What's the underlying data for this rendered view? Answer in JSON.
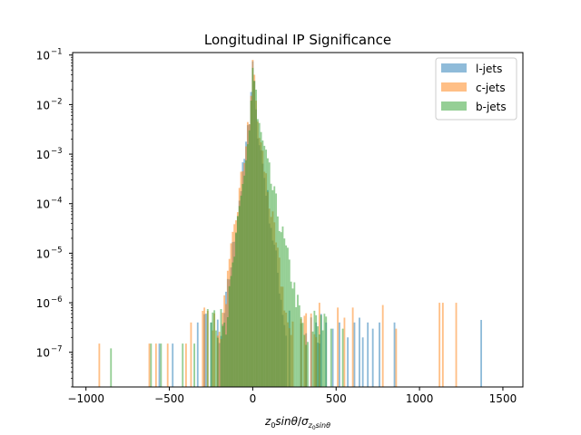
{
  "chart_data": {
    "type": "histogram",
    "title": "Longitudinal IP Significance",
    "xlabel_parts": {
      "base": "z",
      "sub0": "0",
      "mid": "sin",
      "theta": "θ",
      "slash": "/",
      "sigma": "σ",
      "sub_sigma": "z",
      "sub_sub": "0",
      "sub_tail": "sinθ"
    },
    "x_range": [
      -1080,
      1620
    ],
    "y_range_log10": [
      -7.7,
      -0.95
    ],
    "y_scale": "log",
    "x_ticks": [
      -1000,
      -500,
      0,
      500,
      1000,
      1500
    ],
    "x_tick_labels": [
      "−1000",
      "−500",
      "0",
      "500",
      "1000",
      "1500"
    ],
    "y_ticks_exp": [
      -7,
      -6,
      -5,
      -4,
      -3,
      -2,
      -1
    ],
    "y_tick_labels": [
      "10",
      "10",
      "10",
      "10",
      "10",
      "10",
      "10"
    ],
    "y_tick_exp_labels": [
      "−7",
      "−6",
      "−5",
      "−4",
      "−3",
      "−2",
      "−1"
    ],
    "bin_width": 10,
    "legend_position": "top-right",
    "series": [
      {
        "name": "l-jets",
        "color": "#1f77b4",
        "opacity": 0.5,
        "center_peak": [
          [
            0,
            0.075
          ],
          [
            10,
            0.03
          ],
          [
            -10,
            0.018
          ],
          [
            20,
            0.008
          ],
          [
            -20,
            0.004
          ]
        ],
        "right_decay": 0.0245,
        "left_decay": 0.026,
        "floor_x": [
          -300,
          420
        ],
        "outliers": [
          [
            -560,
            1.5e-07
          ],
          [
            -480,
            1.5e-07
          ],
          [
            -330,
            4e-07
          ],
          [
            -250,
            4e-07
          ],
          [
            380,
            4e-07
          ],
          [
            440,
            4e-07
          ],
          [
            480,
            3e-07
          ],
          [
            520,
            4e-07
          ],
          [
            570,
            2e-07
          ],
          [
            610,
            4e-07
          ],
          [
            640,
            5e-07
          ],
          [
            660,
            2e-07
          ],
          [
            690,
            4e-07
          ],
          [
            720,
            3e-07
          ],
          [
            760,
            4e-07
          ],
          [
            850,
            4e-07
          ],
          [
            1370,
            4.5e-07
          ]
        ]
      },
      {
        "name": "c-jets",
        "color": "#ff7f0e",
        "opacity": 0.5,
        "center_peak": [
          [
            0,
            0.08
          ],
          [
            10,
            0.04
          ],
          [
            -10,
            0.015
          ],
          [
            20,
            0.012
          ],
          [
            -20,
            0.004
          ]
        ],
        "right_decay": 0.0225,
        "left_decay": 0.025,
        "floor_x": [
          -310,
          400
        ],
        "outliers": [
          [
            -920,
            1.5e-07
          ],
          [
            -620,
            1.5e-07
          ],
          [
            -580,
            1.5e-07
          ],
          [
            -510,
            1.5e-07
          ],
          [
            -400,
            1.5e-07
          ],
          [
            -370,
            4e-07
          ],
          [
            -290,
            8e-07
          ],
          [
            400,
            1e-06
          ],
          [
            510,
            8e-07
          ],
          [
            550,
            5e-07
          ],
          [
            600,
            8e-07
          ],
          [
            780,
            9e-07
          ],
          [
            860,
            3e-07
          ],
          [
            1120,
            1e-06
          ],
          [
            1140,
            1e-06
          ],
          [
            1220,
            1e-06
          ]
        ]
      },
      {
        "name": "b-jets",
        "color": "#2ca02c",
        "opacity": 0.5,
        "center_peak": [
          [
            0,
            0.055
          ],
          [
            10,
            0.03
          ],
          [
            -10,
            0.012
          ],
          [
            20,
            0.02
          ]
        ],
        "right_decay": 0.0155,
        "left_decay": 0.028,
        "floor_x": [
          -280,
          460
        ],
        "outliers": [
          [
            -850,
            1.2e-07
          ],
          [
            -610,
            1.5e-07
          ],
          [
            -550,
            1.5e-07
          ],
          [
            -420,
            1.5e-07
          ],
          [
            -350,
            1.5e-07
          ],
          [
            430,
            6e-07
          ],
          [
            470,
            3e-07
          ],
          [
            540,
            3e-07
          ]
        ]
      }
    ]
  }
}
